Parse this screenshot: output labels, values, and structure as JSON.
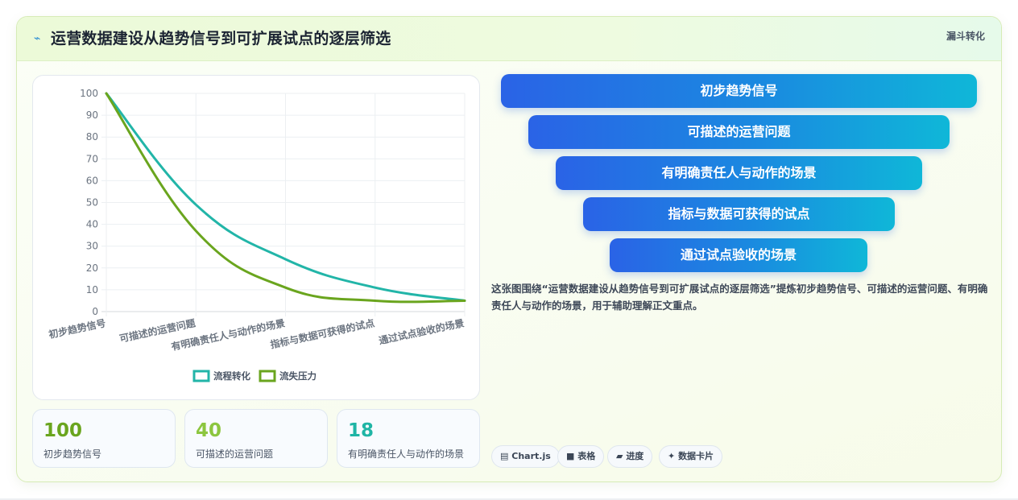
{
  "header": {
    "icon": "trend-icon",
    "title": "运营数据建设从趋势信号到可扩展试点的逐层筛选",
    "tag": "漏斗转化"
  },
  "chart_data": {
    "type": "line",
    "categories": [
      "初步趋势信号",
      "可描述的运营问题",
      "有明确责任人与动作的场景",
      "指标与数据可获得的试点",
      "通过试点验收的场景"
    ],
    "series": [
      {
        "name": "流程转化",
        "color": "#22b5a8",
        "values": [
          100,
          49,
          24,
          11,
          5
        ]
      },
      {
        "name": "流失压力",
        "color": "#6aa51e",
        "values": [
          100,
          37,
          11,
          5,
          5
        ]
      }
    ],
    "ylim": [
      0,
      100
    ],
    "yticks": [
      0,
      10,
      20,
      30,
      40,
      50,
      60,
      70,
      80,
      90,
      100
    ],
    "grid": true,
    "legend": "bottom"
  },
  "stats": [
    {
      "value": "100",
      "label": "初步趋势信号",
      "color": "#6aa51e"
    },
    {
      "value": "40",
      "label": "可描述的运营问题",
      "color": "#8cc63f"
    },
    {
      "value": "18",
      "label": "有明确责任人与动作的场景",
      "color": "#1fb5a5"
    }
  ],
  "funnel": [
    "初步趋势信号",
    "可描述的运营问题",
    "有明确责任人与动作的场景",
    "指标与数据可获得的试点",
    "通过试点验收的场景"
  ],
  "description": "这张图围绕“运营数据建设从趋势信号到可扩展试点的逐层筛选”提炼初步趋势信号、可描述的运营问题、有明确责任人与动作的场景，用于辅助理解正文重点。",
  "chips": [
    {
      "icon": "chart-icon",
      "label": "Chart.js"
    },
    {
      "icon": "table-icon",
      "label": "表格"
    },
    {
      "icon": "progress-icon",
      "label": "进度"
    },
    {
      "icon": "sparkle-icon",
      "label": "数据卡片"
    }
  ]
}
